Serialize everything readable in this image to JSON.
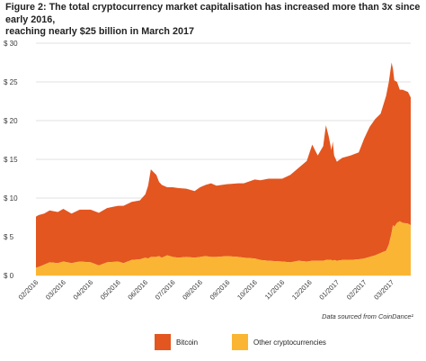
{
  "title": {
    "line1": "Figure 2: The total cryptocurrency market capitalisation has increased more than 3x since early 2016,",
    "line2": "reaching nearly $25 billion in March 2017"
  },
  "source_note": "Data sourced from CoinDance¹",
  "colors": {
    "bitcoin": "#e35620",
    "other": "#fbb534",
    "grid": "#d6d6d6",
    "axis_text": "#3a3a3a"
  },
  "chart_data": {
    "type": "area",
    "stacked": true,
    "title": "Figure 2: The total cryptocurrency market capitalisation has increased more than 3x since early 2016, reaching nearly $25 billion in March 2017",
    "xlabel": "",
    "ylabel": "",
    "ylim": [
      0,
      30
    ],
    "yticks": [
      0,
      5,
      10,
      15,
      20,
      25,
      30
    ],
    "ytick_labels": [
      "$ 0",
      "$ 5",
      "$ 10",
      "$ 15",
      "$ 20",
      "$ 25",
      "$ 30"
    ],
    "xticks": [
      "02/2016",
      "03/2016",
      "04/2016",
      "05/2016",
      "06/2016",
      "07/2016",
      "08/2016",
      "09/2016",
      "10/2016",
      "11/2016",
      "12/2016",
      "01/2017",
      "02/2017",
      "03/2017"
    ],
    "grid": true,
    "legend": "bottom",
    "x": [
      0.0,
      0.1,
      0.3,
      0.5,
      0.8,
      1.0,
      1.3,
      1.6,
      2.0,
      2.3,
      2.6,
      3.0,
      3.2,
      3.5,
      3.8,
      4.0,
      4.1,
      4.2,
      4.4,
      4.5,
      4.6,
      4.8,
      5.0,
      5.2,
      5.5,
      5.8,
      6.0,
      6.2,
      6.4,
      6.6,
      7.0,
      7.4,
      7.6,
      8.0,
      8.2,
      8.5,
      9.0,
      9.3,
      9.6,
      9.9,
      10.1,
      10.3,
      10.5,
      10.6,
      10.7,
      10.8,
      10.85,
      10.9,
      11.0,
      11.2,
      11.5,
      11.8,
      12.0,
      12.2,
      12.4,
      12.6,
      12.8,
      12.9,
      13.0,
      13.05,
      13.1,
      13.2,
      13.3,
      13.4,
      13.6,
      13.7
    ],
    "series": [
      {
        "name": "Bitcoin",
        "values": [
          6.6,
          6.7,
          6.6,
          6.7,
          6.6,
          6.8,
          6.4,
          6.7,
          6.8,
          6.8,
          7.0,
          7.2,
          7.4,
          7.5,
          7.6,
          8.2,
          9.4,
          11.3,
          10.6,
          9.6,
          9.4,
          8.8,
          9.0,
          9.0,
          8.8,
          8.6,
          9.0,
          9.2,
          9.5,
          9.2,
          9.3,
          9.5,
          9.6,
          10.2,
          10.3,
          10.6,
          10.7,
          11.3,
          12.0,
          13.0,
          15.0,
          13.6,
          14.8,
          17.4,
          16.0,
          14.2,
          15.4,
          13.5,
          12.8,
          13.2,
          13.5,
          13.8,
          15.5,
          16.8,
          17.6,
          18.0,
          20.0,
          21.0,
          22.0,
          20.2,
          18.9,
          18.2,
          17.0,
          17.2,
          17.0,
          16.5
        ]
      },
      {
        "name": "Other cryptocurrencies",
        "values": [
          1.0,
          1.1,
          1.4,
          1.7,
          1.6,
          1.8,
          1.6,
          1.8,
          1.7,
          1.3,
          1.7,
          1.8,
          1.6,
          2.0,
          2.1,
          2.3,
          2.2,
          2.4,
          2.4,
          2.5,
          2.3,
          2.6,
          2.4,
          2.3,
          2.4,
          2.3,
          2.4,
          2.5,
          2.4,
          2.4,
          2.5,
          2.4,
          2.3,
          2.2,
          2.0,
          1.9,
          1.8,
          1.7,
          1.9,
          1.8,
          1.9,
          1.9,
          1.9,
          2.0,
          2.0,
          2.0,
          1.9,
          2.0,
          1.9,
          2.0,
          2.0,
          2.1,
          2.2,
          2.4,
          2.6,
          2.9,
          3.2,
          4.0,
          5.5,
          6.5,
          6.3,
          6.8,
          7.0,
          6.8,
          6.7,
          6.5
        ]
      }
    ],
    "annotations": []
  },
  "legend": {
    "items": [
      {
        "label": "Bitcoin",
        "color": "#e35620"
      },
      {
        "label": "Other cryptocurrencies",
        "color": "#fbb534"
      }
    ]
  }
}
